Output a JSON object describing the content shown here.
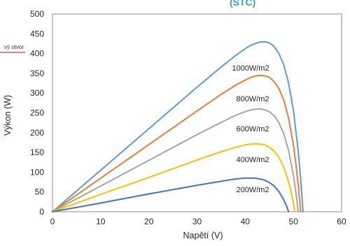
{
  "chart_data": {
    "type": "line",
    "title": "(STC)",
    "xlabel": "Napětí (V)",
    "ylabel": "Výkon (W)",
    "xlim": [
      0,
      60
    ],
    "ylim": [
      0,
      500
    ],
    "xticks": [
      0,
      10,
      20,
      30,
      40,
      50,
      60
    ],
    "yticks": [
      0,
      50,
      100,
      150,
      200,
      250,
      300,
      350,
      400,
      450,
      500
    ],
    "grid": false,
    "legend": {
      "placement": "left",
      "entries": [
        {
          "label": "vý otvor",
          "color": "#e45a5a"
        }
      ]
    },
    "series": [
      {
        "name": "1000W/m2",
        "color": "#5b9bd5",
        "x": [
          0,
          10,
          20,
          30,
          35,
          38,
          40,
          41,
          42,
          43,
          44,
          45,
          46,
          47,
          48,
          49,
          50,
          51,
          51.5,
          52
        ],
        "y": [
          0,
          105,
          210,
          315,
          366,
          395,
          412,
          420,
          425,
          429,
          430,
          427,
          418,
          400,
          371,
          325,
          256,
          152,
          83,
          0
        ]
      },
      {
        "name": "800W/m2",
        "color": "#ed7d31",
        "x": [
          0,
          10,
          20,
          30,
          35,
          38,
          40,
          41,
          42,
          43,
          44,
          45,
          46,
          47,
          48,
          49,
          50,
          50.5,
          51,
          51.5
        ],
        "y": [
          0,
          85,
          170,
          255,
          297,
          320,
          333,
          339,
          343,
          345,
          344,
          340,
          329,
          311,
          282,
          236,
          168,
          122,
          67,
          0
        ]
      },
      {
        "name": "600W/m2",
        "color": "#a5a5a5",
        "x": [
          0,
          10,
          20,
          30,
          35,
          38,
          40,
          41,
          42,
          43,
          44,
          45,
          46,
          47,
          48,
          49,
          50,
          50.5,
          51
        ],
        "y": [
          0,
          65,
          130,
          195,
          226,
          244,
          253,
          257,
          259,
          260,
          258,
          253,
          243,
          225,
          197,
          155,
          92,
          50,
          0
        ]
      },
      {
        "name": "400W/m2",
        "color": "#ffc000",
        "x": [
          0,
          10,
          20,
          30,
          35,
          38,
          40,
          41,
          42,
          43,
          44,
          45,
          46,
          47,
          48,
          49,
          49.5,
          50,
          50.3
        ],
        "y": [
          0,
          44,
          87,
          131,
          152,
          163,
          169,
          171,
          172,
          171,
          169,
          163,
          153,
          137,
          112,
          75,
          51,
          21,
          0
        ]
      },
      {
        "name": "200W/m2",
        "color": "#4472c4",
        "x": [
          0,
          10,
          20,
          30,
          35,
          38,
          40,
          41,
          42,
          43,
          44,
          45,
          46,
          47,
          48,
          48.5,
          49
        ],
        "y": [
          0,
          22,
          45,
          67,
          77,
          83,
          85,
          85,
          85,
          83,
          80,
          74,
          65,
          51,
          30,
          17,
          0
        ]
      }
    ]
  }
}
